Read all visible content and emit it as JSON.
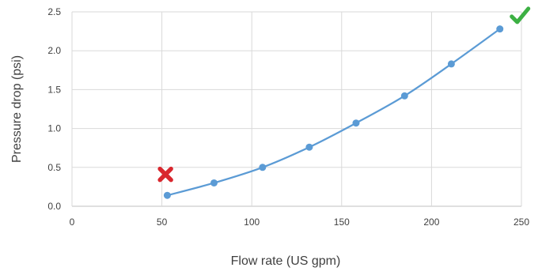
{
  "chart_data": {
    "type": "line",
    "title": "",
    "xlabel": "Flow rate (US gpm)",
    "ylabel": "Pressure drop (psi)",
    "xlim": [
      0,
      250
    ],
    "ylim": [
      0,
      2.5
    ],
    "x_ticks": [
      "0",
      "50",
      "100",
      "150",
      "200",
      "250"
    ],
    "y_ticks": [
      "0.0",
      "0.5",
      "1.0",
      "1.5",
      "2.0",
      "2.5"
    ],
    "grid": true,
    "legend": "none",
    "series": [
      {
        "x": [
          53,
          79,
          106,
          132,
          158,
          185,
          211,
          238
        ],
        "y": [
          0.14,
          0.3,
          0.5,
          0.76,
          1.07,
          1.42,
          1.83,
          2.28
        ],
        "color": "#5b9bd5"
      }
    ],
    "annotations": [
      {
        "icon": "x-mark-icon",
        "x": 52,
        "y": 0.41,
        "color": "#d9272e"
      },
      {
        "icon": "check-mark-icon",
        "x": 249,
        "y": 2.45,
        "color": "#3cb043"
      }
    ]
  }
}
